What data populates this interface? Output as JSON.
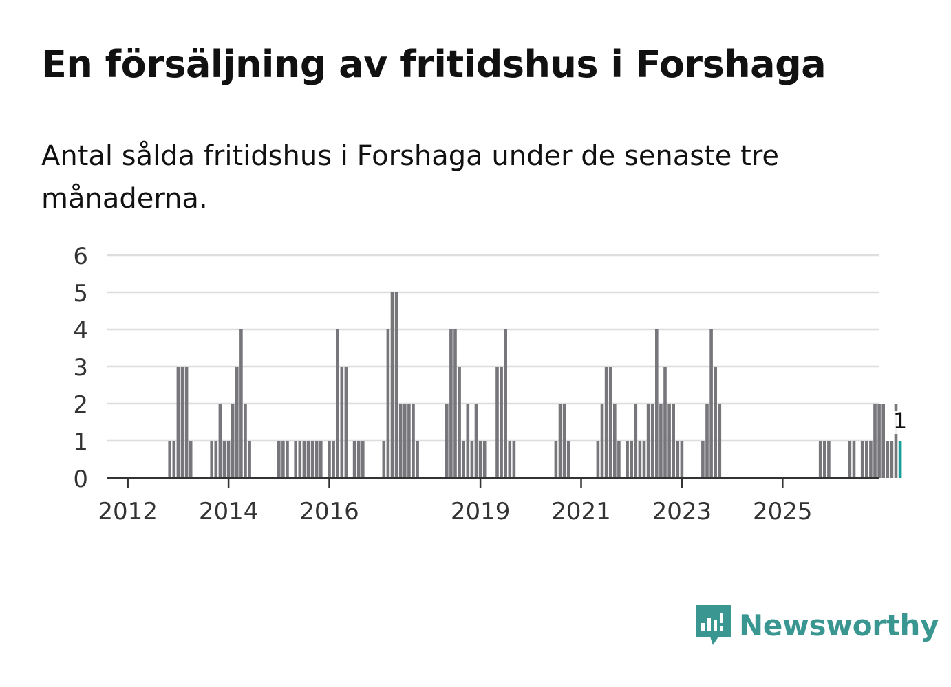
{
  "header": {
    "title": "En försäljning av fritidshus i Forshaga",
    "subtitle": "Antal sålda fritidshus i Forshaga under de senaste tre månaderna."
  },
  "brand": {
    "name": "Newsworthy",
    "icon": "newsworthy-logo-icon",
    "color": "#3a9690"
  },
  "colors": {
    "bar": "#77767b",
    "highlight": "#1a9e9a",
    "grid": "#dddddd",
    "axis": "#333333"
  },
  "chart_data": {
    "type": "bar",
    "title": "",
    "xlabel": "",
    "ylabel": "",
    "ylim": [
      0,
      6
    ],
    "yticks": [
      0,
      1,
      2,
      3,
      4,
      5,
      6
    ],
    "xtick_labels": [
      "2012",
      "2014",
      "2016",
      "2019",
      "2021",
      "2023",
      "2025"
    ],
    "start_month": "2011-09",
    "grid": true,
    "highlight_last": true,
    "last_value_label": "1",
    "values": [
      0,
      0,
      0,
      0,
      0,
      0,
      0,
      0,
      0,
      0,
      0,
      0,
      0,
      0,
      1,
      1,
      3,
      3,
      3,
      1,
      0,
      0,
      0,
      0,
      1,
      1,
      2,
      1,
      1,
      2,
      3,
      4,
      2,
      1,
      0,
      0,
      0,
      0,
      0,
      0,
      1,
      1,
      1,
      0,
      1,
      1,
      1,
      1,
      1,
      1,
      1,
      0,
      1,
      1,
      4,
      3,
      3,
      0,
      1,
      1,
      1,
      0,
      0,
      0,
      0,
      1,
      4,
      5,
      5,
      2,
      2,
      2,
      2,
      1,
      0,
      0,
      0,
      0,
      0,
      0,
      2,
      4,
      4,
      3,
      1,
      2,
      1,
      2,
      1,
      1,
      0,
      0,
      3,
      3,
      4,
      1,
      1,
      0,
      0,
      0,
      0,
      0,
      0,
      0,
      0,
      0,
      1,
      2,
      2,
      1,
      0,
      0,
      0,
      0,
      0,
      0,
      1,
      2,
      3,
      3,
      2,
      1,
      0,
      1,
      1,
      2,
      1,
      1,
      2,
      2,
      4,
      2,
      3,
      2,
      2,
      1,
      1,
      0,
      0,
      0,
      0,
      1,
      2,
      4,
      3,
      2,
      0,
      0,
      0,
      0,
      0,
      0,
      0,
      0,
      0,
      0,
      0,
      0,
      0,
      0,
      0,
      0,
      0,
      0,
      0,
      0,
      0,
      0,
      0,
      1,
      1,
      1,
      0,
      0,
      0,
      0,
      1,
      1,
      0,
      1,
      1,
      1,
      2,
      2,
      2,
      1,
      1,
      2,
      1
    ]
  }
}
